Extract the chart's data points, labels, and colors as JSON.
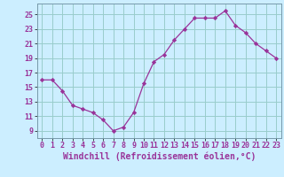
{
  "x": [
    0,
    1,
    2,
    3,
    4,
    5,
    6,
    7,
    8,
    9,
    10,
    11,
    12,
    13,
    14,
    15,
    16,
    17,
    18,
    19,
    20,
    21,
    22,
    23
  ],
  "y": [
    16,
    16,
    14.5,
    12.5,
    12,
    11.5,
    10.5,
    9,
    9.5,
    11.5,
    15.5,
    18.5,
    19.5,
    21.5,
    23,
    24.5,
    24.5,
    24.5,
    25.5,
    23.5,
    22.5,
    21,
    20,
    19
  ],
  "line_color": "#993399",
  "marker": "D",
  "marker_size": 2.2,
  "bg_color": "#cceeff",
  "grid_color": "#99cccc",
  "xlabel": "Windchill (Refroidissement éolien,°C)",
  "xlabel_fontsize": 7,
  "ylabel_ticks": [
    9,
    11,
    13,
    15,
    17,
    19,
    21,
    23,
    25
  ],
  "xticks": [
    0,
    1,
    2,
    3,
    4,
    5,
    6,
    7,
    8,
    9,
    10,
    11,
    12,
    13,
    14,
    15,
    16,
    17,
    18,
    19,
    20,
    21,
    22,
    23
  ],
  "ylim": [
    8.0,
    26.5
  ],
  "xlim": [
    -0.5,
    23.5
  ],
  "tick_fontsize": 6
}
